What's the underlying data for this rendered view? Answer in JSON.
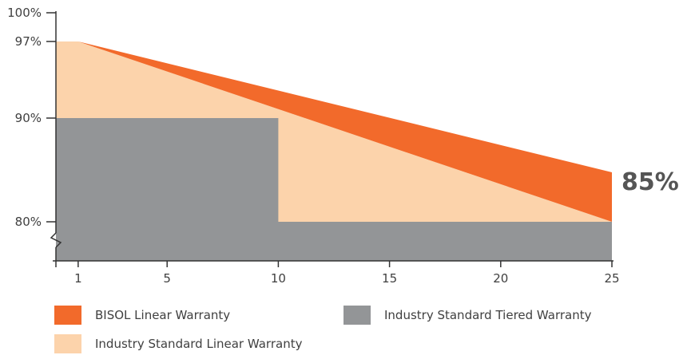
{
  "chart_data": {
    "type": "area",
    "title": "",
    "xlabel": "",
    "ylabel": "",
    "x_ticks": [
      1,
      5,
      10,
      15,
      20,
      25
    ],
    "y_tick_labels": [
      "100%",
      "97%",
      "90%",
      "80%"
    ],
    "y_ticks": [
      100,
      97,
      90,
      80
    ],
    "callout": {
      "label": "85%",
      "x": 25,
      "y": 85
    },
    "series": [
      {
        "name": "BISOL Linear Warranty",
        "points": [
          [
            1,
            97
          ],
          [
            25,
            85
          ]
        ]
      },
      {
        "name": "Industry Standard Linear Warranty",
        "points": [
          [
            0,
            97
          ],
          [
            1,
            97
          ],
          [
            25,
            80
          ]
        ]
      },
      {
        "name": "Industry Standard Tiered Warranty",
        "points": [
          [
            0,
            90
          ],
          [
            10,
            90
          ],
          [
            10,
            80
          ],
          [
            25,
            80
          ]
        ]
      }
    ],
    "colors": {
      "bisol": "#f26a2b",
      "linear": "#fcd3ab",
      "tiered": "#939597",
      "axis": "#333333"
    }
  },
  "legend": [
    {
      "label": "BISOL Linear Warranty",
      "color": "#f26a2b"
    },
    {
      "label": "Industry Standard Tiered Warranty",
      "color": "#939597"
    },
    {
      "label": "Industry Standard Linear Warranty",
      "color": "#fcd3ab"
    }
  ]
}
